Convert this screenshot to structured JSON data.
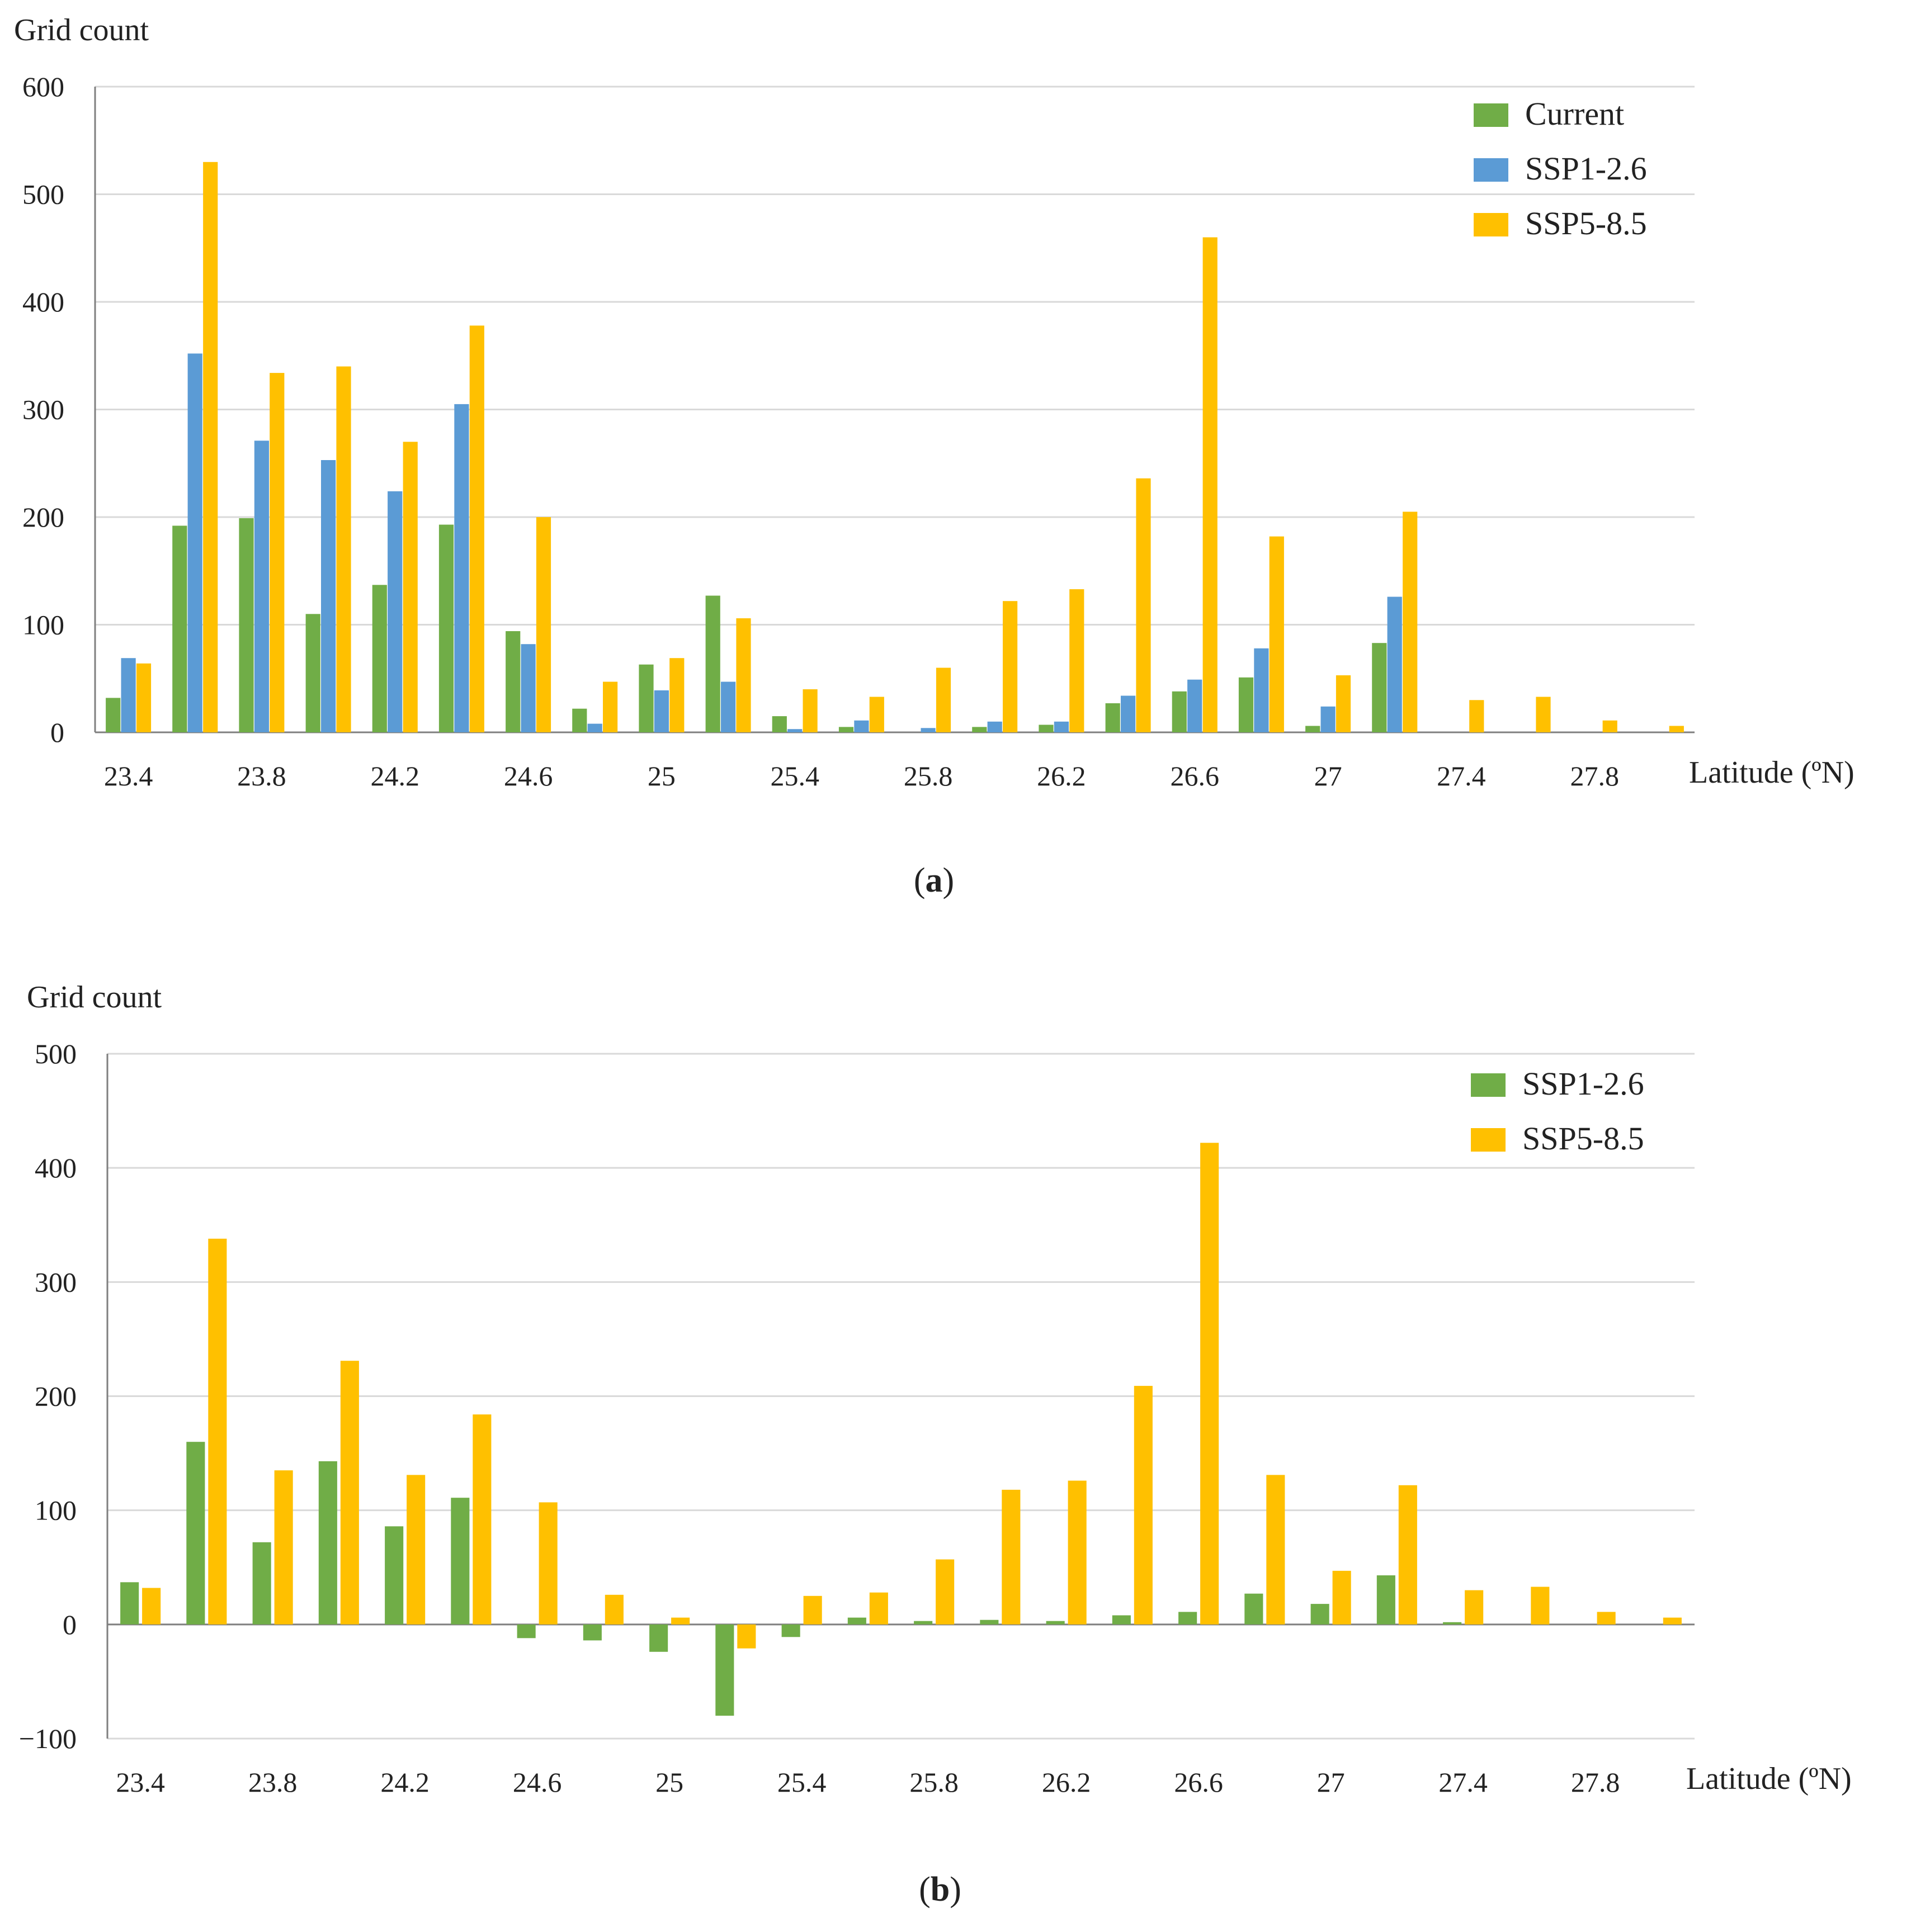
{
  "colors": {
    "current": "#70AD47",
    "ssp126_a": "#5B9BD5",
    "ssp585": "#FFC000",
    "ssp126_b": "#70AD47",
    "grid": "#D9D9D9",
    "axis": "#7F7F7F"
  },
  "chart_data": [
    {
      "type": "bar",
      "panel_label": "a",
      "ylabel": "Grid count",
      "xlabel": "Latitude (ºN)",
      "ylim": [
        0,
        600
      ],
      "yticks": [
        0,
        100,
        200,
        300,
        400,
        500,
        600
      ],
      "x_tick_labels": [
        "23.4",
        "23.8",
        "24.2",
        "24.6",
        "25",
        "25.4",
        "25.8",
        "26.2",
        "26.6",
        "27",
        "27.4",
        "27.8"
      ],
      "categories": [
        "23.4",
        "23.6",
        "23.8",
        "24",
        "24.2",
        "24.4",
        "24.6",
        "24.8",
        "25",
        "25.2",
        "25.4",
        "25.6",
        "25.8",
        "26",
        "26.2",
        "26.4",
        "26.6",
        "26.8",
        "27",
        "27.2",
        "27.4",
        "27.6",
        "27.8",
        "28"
      ],
      "legend_position": "top-right",
      "grid": true,
      "series": [
        {
          "name": "Current",
          "color_key": "current",
          "values": [
            32,
            192,
            199,
            110,
            137,
            193,
            94,
            22,
            63,
            127,
            15,
            5,
            0,
            5,
            7,
            27,
            38,
            51,
            6,
            83,
            0,
            0,
            0,
            0
          ]
        },
        {
          "name": "SSP1-2.6",
          "color_key": "ssp126_a",
          "values": [
            69,
            352,
            271,
            253,
            224,
            305,
            82,
            8,
            39,
            47,
            3,
            11,
            4,
            10,
            10,
            34,
            49,
            78,
            24,
            126,
            0,
            0,
            0,
            0
          ]
        },
        {
          "name": "SSP5-8.5",
          "color_key": "ssp585",
          "values": [
            64,
            530,
            334,
            340,
            270,
            378,
            200,
            47,
            69,
            106,
            40,
            33,
            60,
            122,
            133,
            236,
            460,
            182,
            53,
            205,
            30,
            33,
            11,
            6
          ]
        }
      ]
    },
    {
      "type": "bar",
      "panel_label": "b",
      "ylabel": "Grid count",
      "xlabel": "Latitude (ºN)",
      "ylim": [
        -100,
        500
      ],
      "yticks": [
        -100,
        0,
        100,
        200,
        300,
        400,
        500
      ],
      "x_tick_labels": [
        "23.4",
        "23.8",
        "24.2",
        "24.6",
        "25",
        "25.4",
        "25.8",
        "26.2",
        "26.6",
        "27",
        "27.4",
        "27.8"
      ],
      "categories": [
        "23.4",
        "23.6",
        "23.8",
        "24",
        "24.2",
        "24.4",
        "24.6",
        "24.8",
        "25",
        "25.2",
        "25.4",
        "25.6",
        "25.8",
        "26",
        "26.2",
        "26.4",
        "26.6",
        "26.8",
        "27",
        "27.2",
        "27.4",
        "27.6",
        "27.8",
        "28"
      ],
      "legend_position": "top-right",
      "grid": true,
      "series": [
        {
          "name": "SSP1-2.6",
          "color_key": "ssp126_b",
          "values": [
            37,
            160,
            72,
            143,
            86,
            111,
            -12,
            -14,
            -24,
            -80,
            -11,
            6,
            3,
            4,
            3,
            8,
            11,
            27,
            18,
            43,
            2,
            0,
            0,
            0
          ]
        },
        {
          "name": "SSP5-8.5",
          "color_key": "ssp585",
          "values": [
            32,
            338,
            135,
            231,
            131,
            184,
            107,
            26,
            6,
            -21,
            25,
            28,
            57,
            118,
            126,
            209,
            422,
            131,
            47,
            122,
            30,
            33,
            11,
            6
          ]
        }
      ]
    }
  ]
}
